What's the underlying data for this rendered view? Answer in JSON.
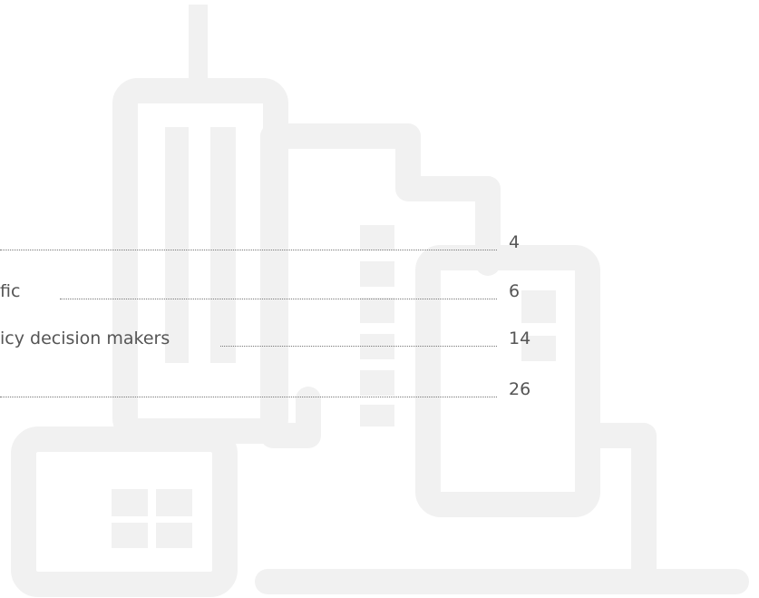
{
  "toc": {
    "entries": [
      {
        "page": 4
      },
      {
        "title": "fic",
        "page": 6
      },
      {
        "title": "icy decision makers",
        "page": 14
      },
      {
        "page": 26
      }
    ]
  }
}
